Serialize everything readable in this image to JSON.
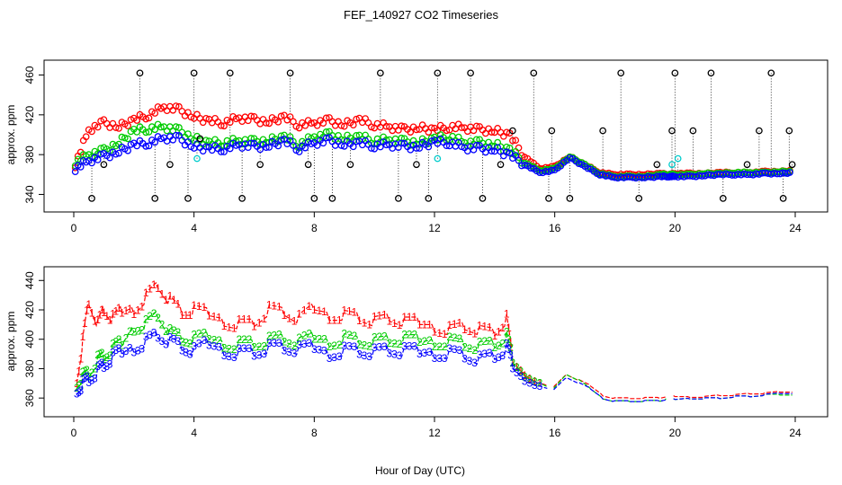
{
  "title": "FEF_140927  CO2 Timeseries",
  "xlabel": "Hour of Day (UTC)",
  "colors": {
    "series1": "#ff0000",
    "series2": "#00cc00",
    "series3": "#0000ff",
    "outlier": "#000000",
    "extra": "#00cccc"
  },
  "chart_data": [
    {
      "type": "scatter",
      "panel": "top",
      "title": "FEF_140927  CO2 Timeseries",
      "xlabel": "",
      "ylabel": "approx. ppm",
      "xlim": [
        0,
        24
      ],
      "ylim": [
        335,
        465
      ],
      "xticks": [
        0,
        4,
        8,
        12,
        16,
        20,
        24
      ],
      "yticks": [
        340,
        380,
        420,
        460
      ],
      "hour_points": [
        0.05,
        0.5,
        1.0,
        1.5,
        2.0,
        2.5,
        3.0,
        3.5,
        4.0,
        4.5,
        5.0,
        5.5,
        6.0,
        6.5,
        7.0,
        7.5,
        8.0,
        8.5,
        9.0,
        9.5,
        10.0,
        10.5,
        11.0,
        11.5,
        12.0,
        12.5,
        13.0,
        13.5,
        14.0,
        14.5,
        15.0,
        15.5,
        16.0,
        16.5,
        17.0,
        17.5,
        18.0,
        18.5,
        19.0,
        19.5,
        19.8,
        20.0,
        20.5,
        21.0,
        21.5,
        22.0,
        22.5,
        23.0,
        23.5,
        23.9
      ],
      "series": [
        {
          "name": "1",
          "color": "#ff0000",
          "values": [
            370,
            405,
            412,
            408,
            415,
            420,
            428,
            425,
            418,
            414,
            412,
            417,
            415,
            413,
            418,
            410,
            412,
            414,
            410,
            415,
            410,
            408,
            405,
            407,
            405,
            408,
            407,
            405,
            404,
            400,
            378,
            366,
            368,
            378,
            370,
            362,
            360,
            360,
            360,
            361,
            360,
            361,
            361,
            361,
            362,
            362,
            362,
            363,
            363,
            364
          ]
        },
        {
          "name": "2",
          "color": "#00cc00",
          "values": [
            372,
            380,
            384,
            392,
            404,
            406,
            408,
            404,
            396,
            392,
            392,
            394,
            393,
            394,
            398,
            390,
            398,
            400,
            396,
            398,
            394,
            395,
            393,
            392,
            396,
            398,
            392,
            392,
            390,
            385,
            372,
            364,
            366,
            378,
            370,
            361,
            358,
            358,
            358,
            360,
            360,
            360,
            360,
            361,
            361,
            362,
            362,
            362,
            363,
            363
          ]
        },
        {
          "name": "3",
          "color": "#0000ff",
          "values": [
            366,
            374,
            378,
            383,
            390,
            392,
            397,
            396,
            388,
            386,
            386,
            390,
            388,
            389,
            394,
            386,
            392,
            394,
            390,
            392,
            389,
            390,
            388,
            388,
            393,
            392,
            387,
            386,
            385,
            380,
            370,
            362,
            364,
            377,
            368,
            360,
            357,
            357,
            357,
            358,
            358,
            358,
            358,
            359,
            360,
            360,
            360,
            361,
            361,
            362
          ]
        },
        {
          "name": "outlier",
          "color": "#000000",
          "outlier_points": [
            [
              0.6,
              336
            ],
            [
              1.0,
              370
            ],
            [
              2.2,
              462
            ],
            [
              2.7,
              336
            ],
            [
              3.2,
              370
            ],
            [
              3.8,
              336
            ],
            [
              4.0,
              462
            ],
            [
              4.2,
              396
            ],
            [
              5.2,
              462
            ],
            [
              5.6,
              336
            ],
            [
              6.2,
              370
            ],
            [
              7.2,
              462
            ],
            [
              7.8,
              370
            ],
            [
              8.0,
              336
            ],
            [
              8.6,
              336
            ],
            [
              9.2,
              370
            ],
            [
              10.2,
              462
            ],
            [
              10.8,
              336
            ],
            [
              11.4,
              370
            ],
            [
              11.8,
              336
            ],
            [
              12.1,
              462
            ],
            [
              13.2,
              462
            ],
            [
              13.6,
              336
            ],
            [
              14.2,
              370
            ],
            [
              14.6,
              404
            ],
            [
              15.3,
              462
            ],
            [
              15.8,
              336
            ],
            [
              15.9,
              404
            ],
            [
              16.5,
              336
            ],
            [
              17.6,
              404
            ],
            [
              18.2,
              462
            ],
            [
              18.8,
              336
            ],
            [
              19.4,
              370
            ],
            [
              19.9,
              404
            ],
            [
              20.0,
              462
            ],
            [
              20.6,
              404
            ],
            [
              21.2,
              462
            ],
            [
              21.6,
              336
            ],
            [
              22.4,
              370
            ],
            [
              22.8,
              404
            ],
            [
              23.2,
              462
            ],
            [
              23.6,
              336
            ],
            [
              23.8,
              404
            ],
            [
              23.9,
              370
            ]
          ]
        },
        {
          "name": "cyan",
          "color": "#00cccc",
          "outlier_points": [
            [
              4.1,
              376
            ],
            [
              12.1,
              376
            ],
            [
              19.9,
              370
            ],
            [
              20.1,
              376
            ]
          ]
        }
      ]
    },
    {
      "type": "line",
      "panel": "bottom",
      "title": "",
      "xlabel": "Hour of Day (UTC)",
      "ylabel": "approx. ppm",
      "xlim": [
        0,
        24
      ],
      "ylim": [
        354,
        442
      ],
      "xticks": [
        0,
        4,
        8,
        12,
        16,
        20,
        24
      ],
      "yticks": [
        360,
        380,
        400,
        420,
        440
      ],
      "x": [
        0.1,
        0.3,
        0.5,
        0.8,
        1.0,
        1.3,
        1.6,
        2.0,
        2.4,
        2.8,
        3.2,
        3.6,
        4.0,
        4.5,
        5.0,
        5.5,
        6.0,
        6.5,
        7.0,
        7.5,
        8.0,
        8.5,
        9.0,
        9.5,
        10.0,
        10.5,
        11.0,
        11.5,
        12.0,
        12.5,
        13.0,
        13.5,
        14.0,
        14.4,
        14.6,
        15.0,
        15.5,
        15.8,
        16.0,
        16.4,
        16.8,
        17.2,
        17.6,
        18.0,
        18.5,
        19.0,
        19.5,
        19.7,
        20.0,
        20.5,
        21.0,
        21.5,
        22.0,
        22.5,
        23.0,
        23.5,
        23.9
      ],
      "series": [
        {
          "name": "1",
          "color": "#ff0000",
          "label_char": "1",
          "values": [
            375,
            400,
            427,
            410,
            420,
            412,
            418,
            422,
            430,
            438,
            426,
            418,
            418,
            416,
            414,
            412,
            412,
            420,
            418,
            412,
            420,
            418,
            418,
            416,
            412,
            414,
            410,
            410,
            410,
            408,
            410,
            406,
            404,
            412,
            384,
            376,
            370,
            368,
            368,
            376,
            372,
            368,
            362,
            360,
            360,
            360,
            360,
            361,
            361,
            361,
            361,
            362,
            362,
            363,
            363,
            364,
            364
          ]
        },
        {
          "name": "2",
          "color": "#00cc00",
          "label_char": "2",
          "values": [
            372,
            376,
            378,
            386,
            388,
            392,
            396,
            410,
            412,
            418,
            404,
            400,
            398,
            400,
            399,
            398,
            398,
            399,
            400,
            396,
            400,
            400,
            402,
            400,
            398,
            399,
            398,
            398,
            400,
            400,
            398,
            395,
            396,
            400,
            384,
            375,
            370,
            367,
            367,
            376,
            372,
            366,
            360,
            358,
            358,
            358,
            358,
            359,
            359,
            360,
            360,
            360,
            361,
            361,
            362,
            362,
            362
          ]
        },
        {
          "name": "3",
          "color": "#0000ff",
          "label_char": "3",
          "values": [
            368,
            371,
            374,
            378,
            382,
            386,
            390,
            396,
            400,
            404,
            398,
            394,
            390,
            396,
            394,
            392,
            392,
            394,
            394,
            391,
            393,
            392,
            394,
            393,
            391,
            392,
            390,
            390,
            392,
            392,
            390,
            386,
            388,
            392,
            380,
            372,
            368,
            366,
            366,
            374,
            370,
            366,
            360,
            358,
            358,
            358,
            358,
            359,
            359,
            360,
            360,
            360,
            361,
            361,
            362,
            363,
            363
          ]
        }
      ]
    }
  ]
}
